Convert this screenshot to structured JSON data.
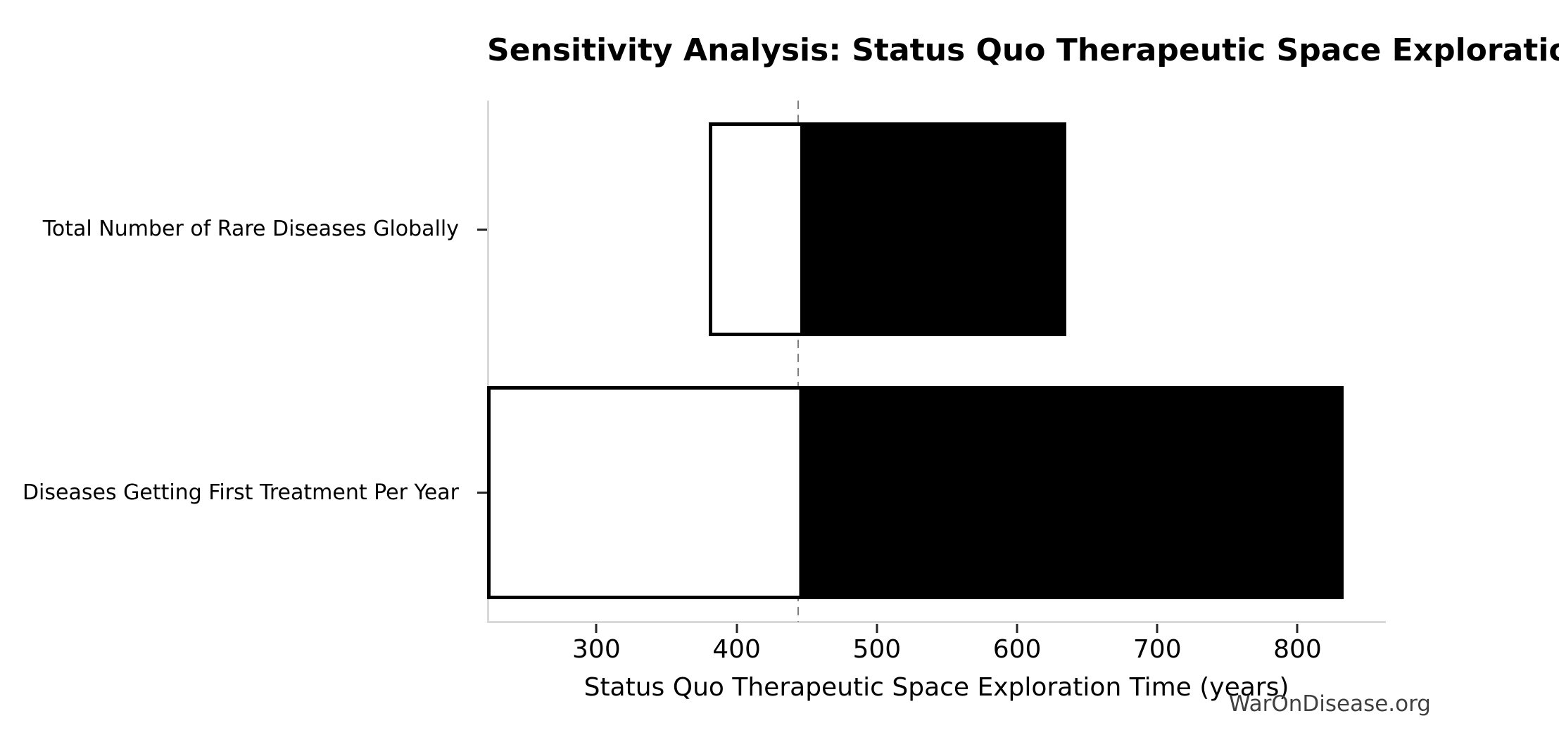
{
  "watermark": "WarOnDisease.org",
  "chart_data": {
    "type": "bar",
    "subtype": "tornado-sensitivity",
    "orientation": "horizontal",
    "title": "Sensitivity Analysis: Status Quo Therapeutic Space Exploration Time",
    "xlabel": "Status Quo Therapeutic Space Exploration Time (years)",
    "ylabel": "",
    "categories": [
      "Total Number of Rare Diseases Globally",
      "Diseases Getting First Treatment Per Year"
    ],
    "base_value": 444,
    "bars": [
      {
        "label": "Total Number of Rare Diseases Globally",
        "low": 380,
        "high": 635
      },
      {
        "label": "Diseases Getting First Treatment Per Year",
        "low": 222,
        "high": 833
      }
    ],
    "x_ticks": [
      300,
      400,
      500,
      600,
      700,
      800
    ],
    "xlim": [
      222,
      863
    ],
    "grid": false,
    "legend": "none",
    "colors": {
      "low_side_fill": "#ffffff",
      "high_side_fill": "#000000",
      "bar_edge": "#000000",
      "baseline_dashed": "#7f7f7f",
      "spine": "#d9d9d9",
      "tick_mark": "#262626",
      "text": "#000000",
      "watermark": "#404040"
    }
  }
}
